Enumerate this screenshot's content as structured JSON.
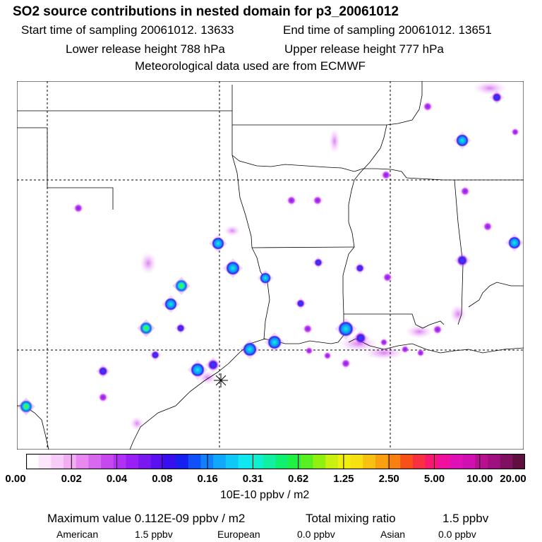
{
  "header": {
    "title": "SO2 source contributions in nested domain for p3_20061012",
    "start": "Start time of sampling 20061012. 13633",
    "end": "End time of sampling 20061012. 13651",
    "lower": "Lower release height  788 hPa",
    "upper": "Upper release height  777 hPa",
    "met": "Meteorological data used are from ECMWF"
  },
  "colorbar": {
    "ticks": [
      "0.00",
      "0.02",
      "0.04",
      "0.08",
      "0.16",
      "0.31",
      "0.62",
      "1.25",
      "2.50",
      "5.00",
      "10.00",
      "20.00"
    ],
    "units": "10E-10 ppbv / m2",
    "colors": [
      "#ffffff",
      "#fce6fc",
      "#f8ccf8",
      "#f2aef2",
      "#e888f0",
      "#d868ee",
      "#c848f0",
      "#b030f4",
      "#9820f4",
      "#7a18f0",
      "#5a10f0",
      "#3810f0",
      "#1820f0",
      "#1050f8",
      "#1080fc",
      "#10a8fc",
      "#10c8f8",
      "#10e8f0",
      "#10f0d0",
      "#10f0a0",
      "#10f070",
      "#20f040",
      "#58f020",
      "#90f010",
      "#c8f010",
      "#f0f010",
      "#f8e010",
      "#f8c010",
      "#f8a010",
      "#f88010",
      "#f85018",
      "#f83040",
      "#f81870",
      "#f010a0",
      "#e010b8",
      "#d010b0",
      "#b81090",
      "#a01080",
      "#801060",
      "#601040"
    ]
  },
  "footer": {
    "max_value": "Maximum value  0.112E-09 ppbv / m2",
    "total_label": "Total mixing ratio",
    "total_value": "1.5 ppbv",
    "regions": [
      {
        "name": "American",
        "value": "1.5 ppbv"
      },
      {
        "name": "European",
        "value": "0.0 ppbv"
      },
      {
        "name": "Asian",
        "value": "0.0 ppbv"
      }
    ]
  }
}
